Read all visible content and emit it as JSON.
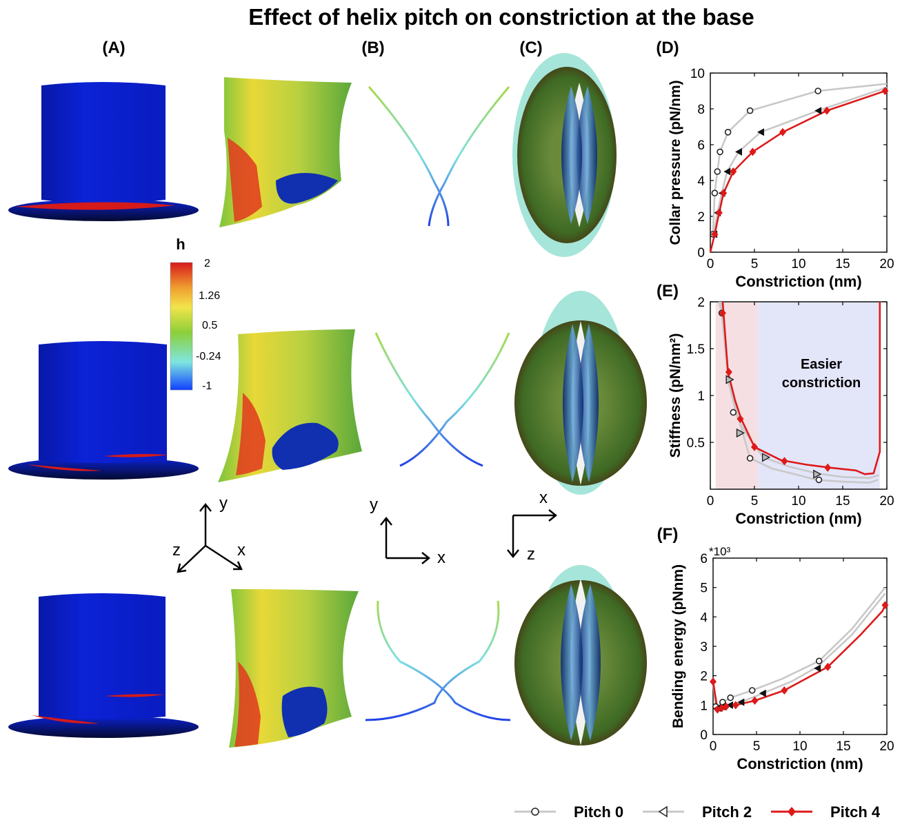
{
  "figure_title": "Effect of helix pitch on constriction at the base",
  "panel_labels": {
    "A": "(A)",
    "B": "(B)",
    "C": "(C)",
    "D": "(D)",
    "E": "(E)",
    "F": "(F)"
  },
  "colorbar": {
    "label": "h",
    "ticks": [
      "2",
      "1.26",
      "0.5",
      "-0.24",
      "-1"
    ],
    "colors": [
      "#d7191c",
      "#f0a030",
      "#f2e44a",
      "#8ccf3a",
      "#7ee6e0",
      "#1040ff"
    ]
  },
  "axes_triads": {
    "a_labels": [
      "y",
      "z",
      "x"
    ],
    "b_labels": [
      "y",
      "x"
    ],
    "c_labels": [
      "x",
      "z"
    ]
  },
  "annotation_E": [
    "Easier",
    "constriction"
  ],
  "legend": [
    "Pitch 0",
    "Pitch 2",
    "Pitch 4"
  ],
  "colors": {
    "pitch0": "#c8c8c8",
    "pitch2": "#c8c8c8",
    "pitch4": "#dd1a1a",
    "blue_surface": "#0a1ccc",
    "helix": "#d51a1a",
    "region_pink": "#f6dfe2",
    "region_blue": "#e3e5f9"
  },
  "chart_data": [
    {
      "type": "line",
      "panel": "D",
      "xlabel": "Constriction (nm)",
      "ylabel": "Collar pressure (pN/nm)",
      "xlim": [
        0,
        20
      ],
      "ylim": [
        0,
        10
      ],
      "xticks": [
        0,
        5,
        10,
        15,
        20
      ],
      "yticks": [
        0,
        2,
        4,
        6,
        8,
        10
      ],
      "series": [
        {
          "name": "Pitch 0",
          "marker": "circle",
          "x": [
            0.3,
            0.5,
            0.8,
            1.1,
            2.0,
            4.5,
            12.2,
            20
          ],
          "y": [
            1.0,
            3.3,
            4.5,
            5.6,
            6.7,
            7.9,
            9.0,
            9.4
          ],
          "marker_x": [
            0.3,
            0.5,
            0.8,
            1.1,
            2.0,
            4.5,
            12.2
          ],
          "marker_y": [
            1.0,
            3.3,
            4.5,
            5.6,
            6.7,
            7.9,
            9.0
          ]
        },
        {
          "name": "Pitch 2",
          "marker": "triangle-left",
          "x": [
            0.4,
            0.8,
            1.3,
            1.9,
            3.2,
            5.7,
            12.2,
            20
          ],
          "y": [
            1.0,
            2.2,
            3.3,
            4.5,
            5.6,
            6.7,
            7.9,
            9.2
          ],
          "marker_x": [
            0.4,
            0.8,
            1.3,
            1.9,
            3.2,
            5.7,
            12.2
          ],
          "marker_y": [
            1.0,
            2.2,
            3.3,
            4.5,
            5.6,
            6.7,
            7.9
          ]
        },
        {
          "name": "Pitch 4",
          "marker": "diamond",
          "x": [
            0,
            0.5,
            1.0,
            1.5,
            2.6,
            4.8,
            8.2,
            13.2,
            19.8
          ],
          "y": [
            0,
            1.0,
            2.2,
            3.3,
            4.5,
            5.6,
            6.7,
            7.9,
            9.0
          ],
          "marker_x": [
            0.5,
            1.0,
            1.5,
            2.6,
            4.8,
            8.2,
            13.2,
            19.8
          ],
          "marker_y": [
            1.0,
            2.2,
            3.3,
            4.5,
            5.6,
            6.7,
            7.9,
            9.0
          ]
        }
      ]
    },
    {
      "type": "line",
      "panel": "E",
      "xlabel": "Constriction (nm)",
      "ylabel": "Stiffness (pN/nm²)",
      "xlim": [
        0,
        20
      ],
      "ylim": [
        0,
        2
      ],
      "xticks": [
        0,
        5,
        10,
        15,
        20
      ],
      "yticks": [
        0.5,
        1,
        1.5,
        2
      ],
      "regions": [
        {
          "from": 0.6,
          "to": 5.4,
          "color": "pink"
        },
        {
          "from": 5.4,
          "to": 19.2,
          "color": "blue"
        }
      ],
      "series": [
        {
          "name": "Pitch 0",
          "marker": "circle",
          "x": [
            1.0,
            1.3,
            2.0,
            3.0,
            4.5,
            7.0,
            10.0,
            12.0,
            15.0,
            18.0,
            19.0
          ],
          "y": [
            2.0,
            1.88,
            1.2,
            0.82,
            0.33,
            0.22,
            0.15,
            0.1,
            0.08,
            0.07,
            0.1
          ],
          "marker_x": [
            1.3,
            2.6,
            4.5,
            12.3
          ],
          "marker_y": [
            1.88,
            0.82,
            0.33,
            0.1
          ]
        },
        {
          "name": "Pitch 2",
          "marker": "triangle",
          "x": [
            1.2,
            2.0,
            3.0,
            4.0,
            6.0,
            9.0,
            12.0,
            15.0,
            18.0,
            19.1
          ],
          "y": [
            2.0,
            1.17,
            0.78,
            0.6,
            0.34,
            0.24,
            0.17,
            0.13,
            0.12,
            0.15
          ],
          "marker_x": [
            2.2,
            3.4,
            6.3,
            12.1
          ],
          "marker_y": [
            1.17,
            0.6,
            0.34,
            0.16
          ]
        },
        {
          "name": "Pitch 4",
          "marker": "diamond",
          "x": [
            1.4,
            2.0,
            2.8,
            3.5,
            5.0,
            8.0,
            11.0,
            13.5,
            16.5,
            17.5,
            18.5,
            19.2,
            19.2,
            19.2
          ],
          "y": [
            2.0,
            1.25,
            0.95,
            0.75,
            0.45,
            0.31,
            0.26,
            0.23,
            0.2,
            0.16,
            0.17,
            0.4,
            1.05,
            2.0
          ],
          "marker_x": [
            1.4,
            2.1,
            3.4,
            5.0,
            8.4,
            13.3
          ],
          "marker_y": [
            1.88,
            1.25,
            0.75,
            0.45,
            0.3,
            0.23
          ]
        }
      ]
    },
    {
      "type": "line",
      "panel": "F",
      "xlabel": "Constriction (nm)",
      "ylabel": "Bending energy (pNnm)",
      "y_multiplier": "*10³",
      "xlim": [
        0,
        20
      ],
      "ylim": [
        0,
        6
      ],
      "xticks": [
        0,
        5,
        10,
        15,
        20
      ],
      "yticks": [
        0,
        1,
        2,
        3,
        4,
        5,
        6
      ],
      "series": [
        {
          "name": "Pitch 0",
          "marker": "circle",
          "x": [
            0,
            0.3,
            0.7,
            1.1,
            2.0,
            4.5,
            8.0,
            12.2,
            16.0,
            19.8
          ],
          "y": [
            1.8,
            0.95,
            1.0,
            1.1,
            1.25,
            1.5,
            1.9,
            2.5,
            3.6,
            5.0
          ],
          "marker_x": [
            0.3,
            1.1,
            2.0,
            4.5,
            12.2
          ],
          "marker_y": [
            0.95,
            1.1,
            1.25,
            1.5,
            2.5
          ]
        },
        {
          "name": "Pitch 2",
          "marker": "triangle-left",
          "x": [
            0,
            0.5,
            1.0,
            1.9,
            3.2,
            5.7,
            9.0,
            12.0,
            16.0,
            19.8
          ],
          "y": [
            1.8,
            0.9,
            0.95,
            1.0,
            1.1,
            1.4,
            1.8,
            2.3,
            3.4,
            4.8
          ],
          "marker_x": [
            0.5,
            1.0,
            1.9,
            3.2,
            5.7,
            12.0
          ],
          "marker_y": [
            0.9,
            0.95,
            1.0,
            1.1,
            1.4,
            2.25
          ]
        },
        {
          "name": "Pitch 4",
          "marker": "diamond",
          "x": [
            0,
            0.5,
            1.0,
            1.5,
            2.6,
            4.8,
            8.2,
            13.2,
            17.0,
            19.5,
            19.8
          ],
          "y": [
            1.8,
            0.85,
            0.9,
            0.95,
            1.0,
            1.15,
            1.5,
            2.3,
            3.4,
            4.2,
            4.4
          ],
          "marker_x": [
            0,
            0.5,
            1.0,
            1.5,
            2.6,
            4.8,
            8.2,
            13.2,
            19.8
          ],
          "marker_y": [
            1.8,
            0.85,
            0.9,
            0.95,
            1.0,
            1.15,
            1.5,
            2.3,
            4.4
          ]
        }
      ]
    }
  ]
}
